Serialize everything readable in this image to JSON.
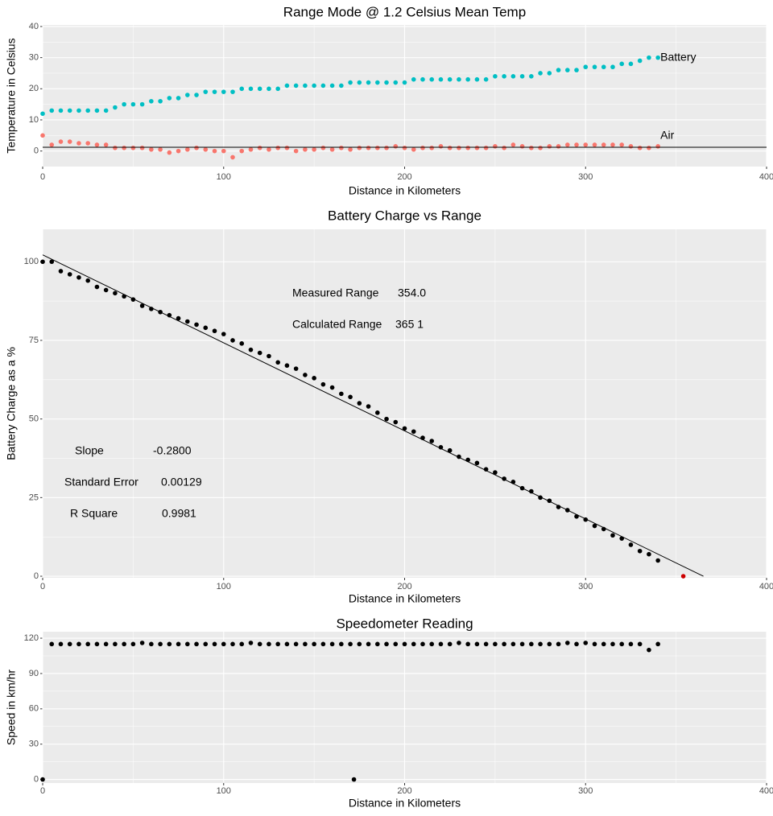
{
  "chart_data": [
    {
      "type": "scatter",
      "title": "Range Mode @ 1.2 Celsius Mean Temp",
      "x_label": "Distance in Kilometers",
      "y_label": "Temperature in Celsius",
      "x": [
        0,
        5,
        10,
        15,
        20,
        25,
        30,
        35,
        40,
        45,
        50,
        55,
        60,
        65,
        70,
        75,
        80,
        85,
        90,
        95,
        100,
        105,
        110,
        115,
        120,
        125,
        130,
        135,
        140,
        145,
        150,
        155,
        160,
        165,
        170,
        175,
        180,
        185,
        190,
        195,
        200,
        205,
        210,
        215,
        220,
        225,
        230,
        235,
        240,
        245,
        250,
        255,
        260,
        265,
        270,
        275,
        280,
        285,
        290,
        295,
        300,
        305,
        310,
        315,
        320,
        325,
        330,
        335,
        340
      ],
      "series": [
        {
          "name": "Battery",
          "color": "#00BFC4",
          "values": [
            12,
            13,
            13,
            13,
            13,
            13,
            13,
            13,
            14,
            15,
            15,
            15,
            16,
            16,
            17,
            17,
            18,
            18,
            19,
            19,
            19,
            19,
            20,
            20,
            20,
            20,
            20,
            21,
            21,
            21,
            21,
            21,
            21,
            21,
            22,
            22,
            22,
            22,
            22,
            22,
            22,
            23,
            23,
            23,
            23,
            23,
            23,
            23,
            23,
            23,
            24,
            24,
            24,
            24,
            24,
            25,
            25,
            26,
            26,
            26,
            27,
            27,
            27,
            27,
            28,
            28,
            29,
            30,
            30
          ]
        },
        {
          "name": "Air",
          "color": "#F8766D",
          "values": [
            5,
            2,
            3,
            3,
            2.5,
            2.5,
            2,
            2,
            1,
            1,
            1,
            1,
            0.5,
            0.5,
            -0.5,
            0,
            0.5,
            1,
            0.5,
            0,
            0,
            -2,
            0,
            0.5,
            1,
            0.5,
            1,
            1,
            0,
            0.5,
            0.5,
            1,
            0.5,
            1,
            0.5,
            1,
            1,
            1,
            1,
            1.5,
            1,
            0.5,
            1,
            1,
            1.5,
            1,
            1,
            1,
            1,
            1,
            1.5,
            1,
            2,
            1.5,
            1,
            1,
            1.5,
            1.5,
            2,
            2,
            2,
            2,
            2,
            2,
            2,
            1.5,
            1,
            1,
            1.5
          ]
        }
      ],
      "hline": 1.2,
      "xlim": [
        0,
        400
      ],
      "xticks": [
        0,
        100,
        200,
        300,
        400
      ],
      "ylim": [
        -5,
        40.5
      ],
      "yticks": [
        0,
        10,
        20,
        30,
        40
      ],
      "grid": true
    },
    {
      "type": "scatter",
      "title": "Battery Charge vs Range",
      "x_label": "Distance in Kilometers",
      "y_label": "Battery Charge as a %",
      "x": [
        0,
        5,
        10,
        15,
        20,
        25,
        30,
        35,
        40,
        45,
        50,
        55,
        60,
        65,
        70,
        75,
        80,
        85,
        90,
        95,
        100,
        105,
        110,
        115,
        120,
        125,
        130,
        135,
        140,
        145,
        150,
        155,
        160,
        165,
        170,
        175,
        180,
        185,
        190,
        195,
        200,
        205,
        210,
        215,
        220,
        225,
        230,
        235,
        240,
        245,
        250,
        255,
        260,
        265,
        270,
        275,
        280,
        285,
        290,
        295,
        300,
        305,
        310,
        315,
        320,
        325,
        330,
        335,
        340
      ],
      "values": [
        100,
        100,
        97,
        96,
        95,
        94,
        92,
        91,
        90,
        89,
        88,
        86,
        85,
        84,
        83,
        82,
        81,
        80,
        79,
        78,
        77,
        75,
        74,
        72,
        71,
        70,
        68,
        67,
        66,
        64,
        63,
        61,
        60,
        58,
        57,
        55,
        54,
        52,
        50,
        49,
        47,
        46,
        44,
        43,
        41,
        40,
        38,
        37,
        36,
        34,
        33,
        31,
        30,
        28,
        27,
        25,
        24,
        22,
        21,
        19,
        18,
        16,
        15,
        13,
        12,
        10,
        8,
        7,
        5
      ],
      "color": "#000000",
      "trend_line": {
        "x": [
          0,
          365.1
        ],
        "y": [
          102.2,
          0
        ]
      },
      "highlight": {
        "x": 354,
        "y": 0,
        "color": "#cc0000"
      },
      "annotations": [
        {
          "text": "Measured Range",
          "value": "354.0"
        },
        {
          "text": "Calculated Range",
          "value": "365 1"
        },
        {
          "text": "Slope",
          "value": "-0.2800"
        },
        {
          "text": "Standard Error",
          "value": "0.00129"
        },
        {
          "text": "R Square",
          "value": "0.9981"
        }
      ],
      "xlim": [
        0,
        400
      ],
      "xticks": [
        0,
        100,
        200,
        300,
        400
      ],
      "ylim": [
        -0.5,
        110.3
      ],
      "yticks": [
        0,
        25,
        50,
        75,
        100
      ],
      "grid": true
    },
    {
      "type": "scatter",
      "title": "Speedometer Reading",
      "x_label": "Distance in Kilometers",
      "y_label": "Speed in km/hr",
      "x": [
        0,
        5,
        10,
        15,
        20,
        25,
        30,
        35,
        40,
        45,
        50,
        55,
        60,
        65,
        70,
        75,
        80,
        85,
        90,
        95,
        100,
        105,
        110,
        115,
        120,
        125,
        130,
        135,
        140,
        145,
        150,
        155,
        160,
        165,
        170,
        172,
        175,
        180,
        185,
        190,
        195,
        200,
        205,
        210,
        215,
        220,
        225,
        230,
        235,
        240,
        245,
        250,
        255,
        260,
        265,
        270,
        275,
        280,
        285,
        290,
        295,
        300,
        305,
        310,
        315,
        320,
        325,
        330,
        335,
        340
      ],
      "values": [
        0,
        115,
        115,
        115,
        115,
        115,
        115,
        115,
        115,
        115,
        115,
        116,
        115,
        115,
        115,
        115,
        115,
        115,
        115,
        115,
        115,
        115,
        115,
        116,
        115,
        115,
        115,
        115,
        115,
        115,
        115,
        115,
        115,
        115,
        115,
        0,
        115,
        115,
        115,
        115,
        115,
        115,
        115,
        115,
        115,
        115,
        115,
        116,
        115,
        115,
        115,
        115,
        115,
        115,
        115,
        115,
        115,
        115,
        115,
        116,
        115,
        116,
        115,
        115,
        115,
        115,
        115,
        115,
        110,
        115
      ],
      "color": "#000000",
      "xlim": [
        0,
        400
      ],
      "xticks": [
        0,
        100,
        200,
        300,
        400
      ],
      "ylim": [
        -3,
        125.5
      ],
      "yticks": [
        0,
        30,
        60,
        90,
        120
      ],
      "grid": true
    }
  ]
}
